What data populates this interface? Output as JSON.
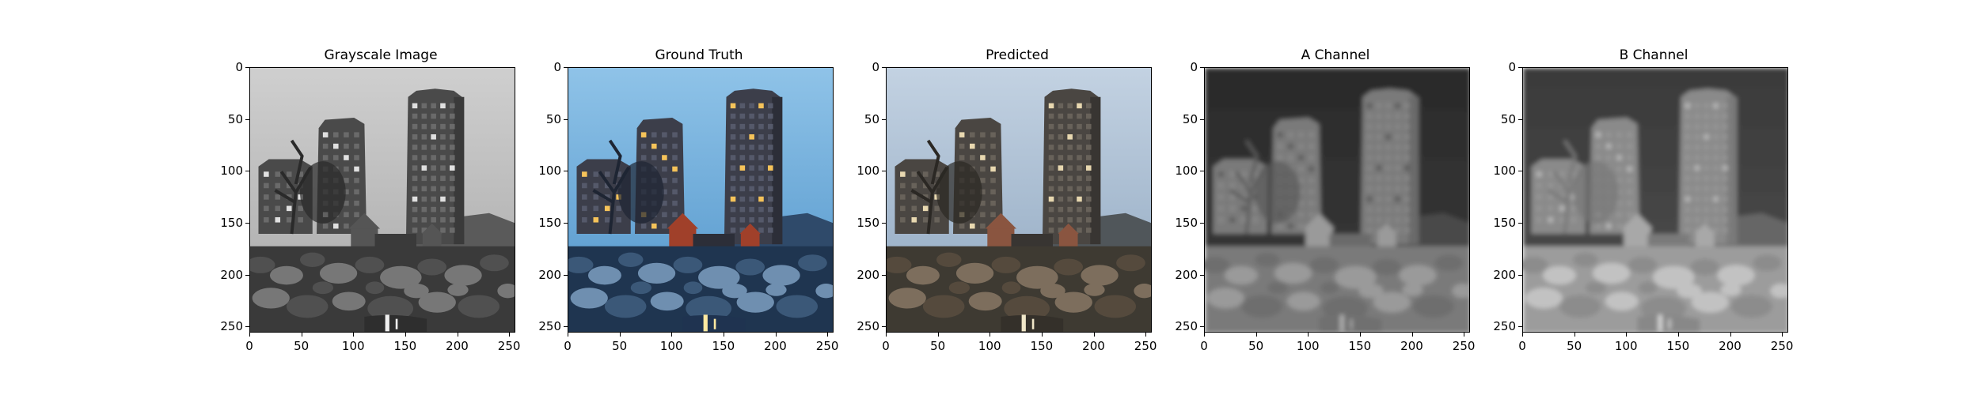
{
  "figure": {
    "panels": [
      {
        "id": "grayscale",
        "title": "Grayscale Image",
        "variant": "gray"
      },
      {
        "id": "ground-truth",
        "title": "Ground Truth",
        "variant": "color"
      },
      {
        "id": "predicted",
        "title": "Predicted",
        "variant": "predicted"
      },
      {
        "id": "a-channel",
        "title": "A Channel",
        "variant": "a"
      },
      {
        "id": "b-channel",
        "title": "B Channel",
        "variant": "b"
      }
    ],
    "axes": {
      "x_ticks": [
        "0",
        "50",
        "100",
        "150",
        "200",
        "250"
      ],
      "y_ticks": [
        "0",
        "50",
        "100",
        "150",
        "200",
        "250"
      ],
      "x_range": [
        0,
        256
      ],
      "y_range": [
        0,
        256
      ]
    }
  }
}
